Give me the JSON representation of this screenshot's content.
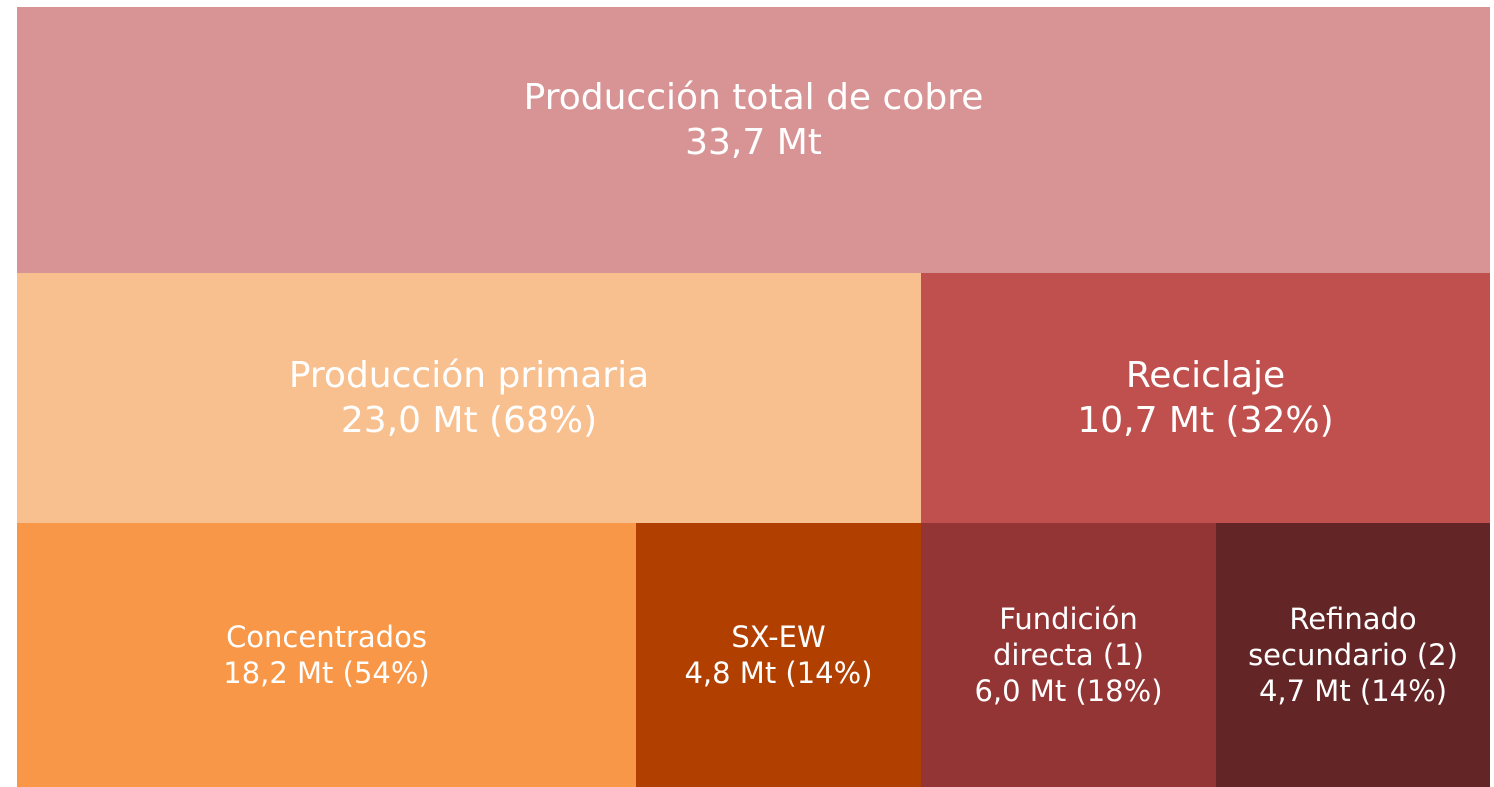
{
  "nodes": [
    {
      "lines": [
        "Producción total de cobre",
        "33,7 Mt"
      ]
    },
    {
      "lines": [
        "Producción primaria",
        "23,0 Mt (68%)"
      ]
    },
    {
      "lines": [
        "Reciclaje",
        "10,7 Mt (32%)"
      ]
    },
    {
      "lines": [
        "Concentrados",
        "18,2 Mt (54%)"
      ]
    },
    {
      "lines": [
        "SX-EW",
        "4,8 Mt (14%)"
      ]
    },
    {
      "lines": [
        "Fundición",
        "directa (1)",
        "6,0 Mt (18%)"
      ]
    },
    {
      "lines": [
        "Refinado",
        "secundario (2)",
        "4,7 Mt (14%)"
      ]
    }
  ]
}
